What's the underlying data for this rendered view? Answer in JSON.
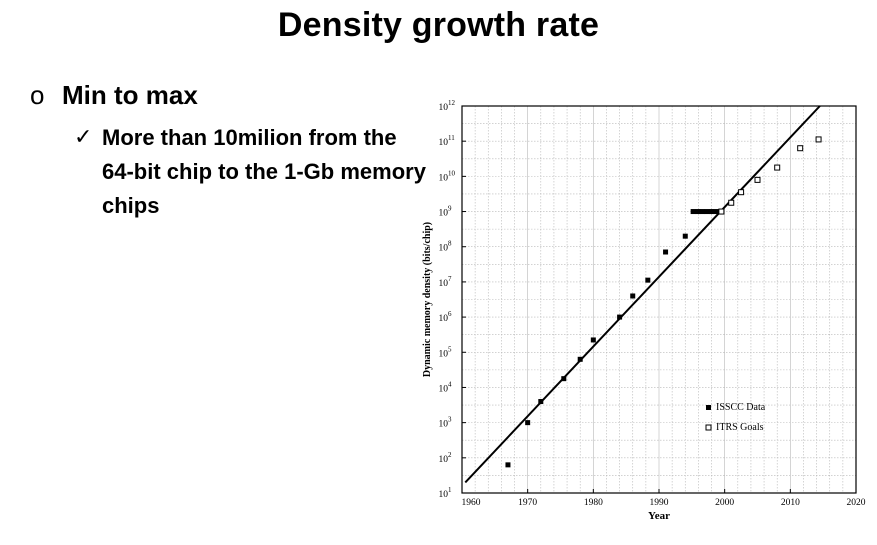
{
  "slide": {
    "title": "Density growth rate",
    "bullet_marker": "o",
    "bullet1": "Min to max",
    "check_marker": "✓",
    "bullet2": "More than 10milion from the 64-bit chip to the 1-Gb memory chips"
  },
  "chart_data": {
    "type": "scatter",
    "title": "",
    "xlabel": "Year",
    "ylabel": "Dynamic memory density (bits/chip)",
    "xlim": [
      1960,
      2020
    ],
    "ylim_exponent": [
      1,
      12
    ],
    "x_ticks": [
      "1960",
      "1970",
      "1980",
      "1990",
      "2000",
      "2010",
      "2020"
    ],
    "y_ticks": [
      {
        "base": "10",
        "exp": "1"
      },
      {
        "base": "10",
        "exp": "2"
      },
      {
        "base": "10",
        "exp": "3"
      },
      {
        "base": "10",
        "exp": "4"
      },
      {
        "base": "10",
        "exp": "5"
      },
      {
        "base": "10",
        "exp": "6"
      },
      {
        "base": "10",
        "exp": "7"
      },
      {
        "base": "10",
        "exp": "8"
      },
      {
        "base": "10",
        "exp": "9"
      },
      {
        "base": "10",
        "exp": "10"
      },
      {
        "base": "10",
        "exp": "11"
      },
      {
        "base": "10",
        "exp": "12"
      }
    ],
    "grid": true,
    "legend": {
      "position": "bottom-right"
    },
    "series": [
      {
        "name": "ISSCC Data",
        "marker": "filled-square",
        "points": [
          [
            1967,
            1.8
          ],
          [
            1970,
            3.0
          ],
          [
            1972,
            3.6
          ],
          [
            1975.5,
            4.25
          ],
          [
            1978,
            4.8
          ],
          [
            1980,
            5.35
          ],
          [
            1984,
            6.0
          ],
          [
            1986,
            6.6
          ],
          [
            1988.3,
            7.05
          ],
          [
            1991,
            7.85
          ],
          [
            1994,
            8.3
          ],
          [
            1995.2,
            9.0
          ],
          [
            1995.9,
            9.0
          ],
          [
            1996.6,
            9.0
          ],
          [
            1997.3,
            9.0
          ],
          [
            1998,
            9.0
          ],
          [
            1998.7,
            9.0
          ]
        ]
      },
      {
        "name": "ITRS Goals",
        "marker": "open-square",
        "points": [
          [
            1999.5,
            9.0
          ],
          [
            2001,
            9.25
          ],
          [
            2002.5,
            9.55
          ],
          [
            2005,
            9.9
          ],
          [
            2008,
            10.25
          ],
          [
            2011.5,
            10.8
          ],
          [
            2014.3,
            11.05
          ]
        ]
      }
    ],
    "trend_line": {
      "from": [
        1960.5,
        1.3
      ],
      "to": [
        2014.5,
        12.0
      ]
    }
  }
}
